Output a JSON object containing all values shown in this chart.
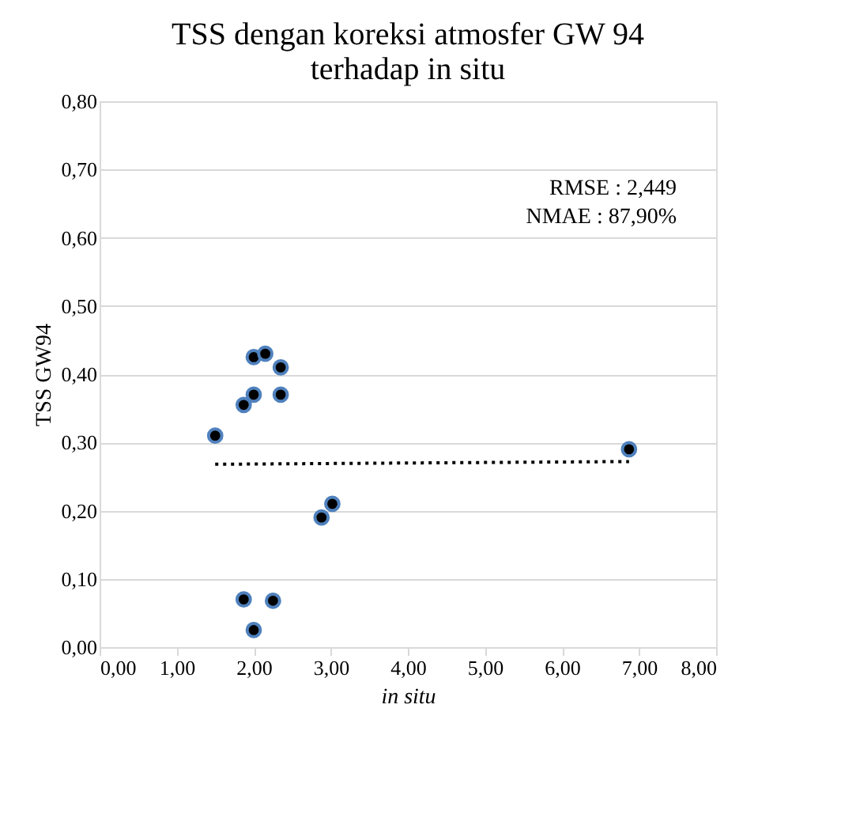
{
  "chart_data": {
    "type": "scatter",
    "title": "TSS dengan koreksi atmosfer GW 94 terhadap in situ",
    "xlabel": "in situ",
    "ylabel": "TSS GW94",
    "x": [
      1.5,
      1.87,
      2.0,
      2.0,
      2.15,
      2.35,
      2.35,
      2.88,
      3.02,
      6.87,
      1.87,
      2.25,
      2.0
    ],
    "series": [
      {
        "color": "#000000",
        "marker": "circle",
        "values": [
          0.31,
          0.355,
          0.37,
          0.425,
          0.43,
          0.41,
          0.37,
          0.19,
          0.21,
          0.29,
          0.07,
          0.068,
          0.025
        ]
      },
      {
        "type": "line",
        "color": "#000000",
        "line_style": "dotted",
        "x": [
          1.5,
          6.87
        ],
        "values": [
          0.268,
          0.272
        ]
      }
    ],
    "xlim": [
      0,
      8
    ],
    "xticks": [
      {
        "value": 0,
        "label": "0,00"
      },
      {
        "value": 1,
        "label": "1,00"
      },
      {
        "value": 2,
        "label": "2,00"
      },
      {
        "value": 3,
        "label": "3,00"
      },
      {
        "value": 4,
        "label": "4,00"
      },
      {
        "value": 5,
        "label": "5,00"
      },
      {
        "value": 6,
        "label": "6,00"
      },
      {
        "value": 7,
        "label": "7,00"
      },
      {
        "value": 8,
        "label": "8,00"
      }
    ],
    "ylim": [
      0,
      0.8
    ],
    "yticks": [
      {
        "value": 0,
        "label": "0,00"
      },
      {
        "value": 0.1,
        "label": "0,10"
      },
      {
        "value": 0.2,
        "label": "0,20"
      },
      {
        "value": 0.3,
        "label": "0,30"
      },
      {
        "value": 0.4,
        "label": "0,40"
      },
      {
        "value": 0.5,
        "label": "0,50"
      },
      {
        "value": 0.6,
        "label": "0,60"
      },
      {
        "value": 0.7,
        "label": "0,70"
      },
      {
        "value": 0.8,
        "label": "0,80"
      }
    ],
    "grid": "y",
    "annotations": [
      "RMSE : 2,449",
      "NMAE : 87,90%"
    ]
  }
}
